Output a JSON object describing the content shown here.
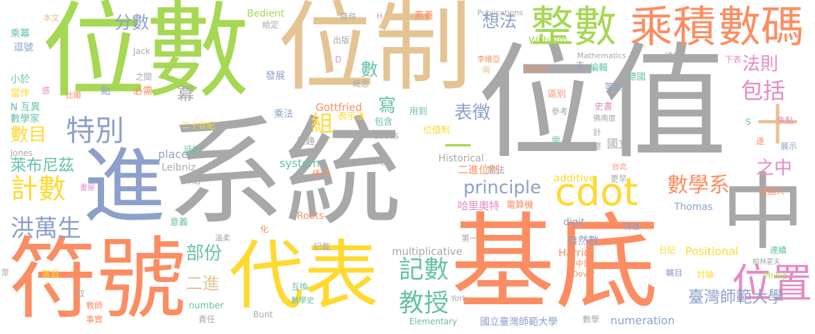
{
  "words": [
    {
      "text": "位值",
      "color": "#A8A8A8"
    },
    {
      "text": "系統",
      "color": "#A8A8A8"
    },
    {
      "text": "位數",
      "color": "#A6D854"
    },
    {
      "text": "位制",
      "color": "#E5C494"
    },
    {
      "text": "基底",
      "color": "#FC8D62"
    },
    {
      "text": "符號",
      "color": "#FC8D62"
    },
    {
      "text": "進",
      "color": "#8DA0CB"
    },
    {
      "text": "代表",
      "color": "#FFD92F"
    },
    {
      "text": "中",
      "color": "#A8A8A8"
    },
    {
      "text": "整數",
      "color": "#A6D854"
    },
    {
      "text": "乘積",
      "color": "#FC8D62"
    },
    {
      "text": "數碼",
      "color": "#FC8D62"
    },
    {
      "text": "十",
      "color": "#E5C494"
    },
    {
      "text": "位置",
      "color": "#E78AC3"
    },
    {
      "text": "cdot",
      "color": "#FFD92F"
    },
    {
      "text": "特別",
      "color": "#8DA0CB"
    },
    {
      "text": "計數",
      "color": "#FFD92F"
    },
    {
      "text": "洪萬生",
      "color": "#8DA0CB"
    },
    {
      "text": "萊布尼茲",
      "color": "#66C2A5"
    },
    {
      "text": "記數",
      "color": "#66C2A5"
    },
    {
      "text": "教授",
      "color": "#66C2A5"
    },
    {
      "text": "數學系",
      "color": "#FC8D62"
    },
    {
      "text": "principle",
      "color": "#8DA0CB"
    },
    {
      "text": "包括",
      "color": "#E78AC3"
    },
    {
      "text": "法則",
      "color": "#E78AC3"
    },
    {
      "text": "之中",
      "color": "#E78AC3"
    },
    {
      "text": "分數",
      "color": "#8DA0CB"
    },
    {
      "text": "表徵",
      "color": "#8DA0CB"
    },
    {
      "text": "數目",
      "color": "#FFD92F"
    },
    {
      "text": "部份",
      "color": "#66C2A5"
    },
    {
      "text": "二進",
      "color": "#E5C494"
    },
    {
      "text": "組",
      "color": "#FFD92F"
    },
    {
      "text": "寫",
      "color": "#66C2A5"
    },
    {
      "text": "數",
      "color": "#66C2A5"
    },
    {
      "text": "冪",
      "color": "#A8A8A8"
    },
    {
      "text": "想法",
      "color": "#8DA0CB"
    },
    {
      "text": "一",
      "color": "#A6D854"
    },
    {
      "text": "臺灣師範大學",
      "color": "#8DA0CB"
    },
    {
      "text": "國立臺灣師範大學",
      "color": "#8DA0CB"
    },
    {
      "text": "numeration",
      "color": "#8DA0CB"
    },
    {
      "text": "Positional",
      "color": "#FFD92F"
    },
    {
      "text": "二進位制",
      "color": "#FC8D62"
    },
    {
      "text": "哈里奧特",
      "color": "#E78AC3"
    },
    {
      "text": "additive",
      "color": "#FFD92F"
    },
    {
      "text": "multiplicative",
      "color": "#A8A8A8"
    },
    {
      "text": "system",
      "color": "#66C2A5"
    },
    {
      "text": "Gottfried",
      "color": "#FC8D62"
    },
    {
      "text": "place",
      "color": "#8DA0CB"
    },
    {
      "text": "自然數",
      "color": "#8DA0CB"
    },
    {
      "text": "Harriot",
      "color": "#FC8D62"
    },
    {
      "text": "Roots",
      "color": "#FC8D62"
    },
    {
      "text": "Historical",
      "color": "#A8A8A8"
    },
    {
      "text": "國立",
      "color": "#A8A8A8"
    },
    {
      "text": "digit",
      "color": "#8DA0CB"
    },
    {
      "text": "Thomas",
      "color": "#8DA0CB"
    },
    {
      "text": "Wilhelm",
      "color": "#A6D854"
    },
    {
      "text": "乘法",
      "color": "#8DA0CB"
    },
    {
      "text": "表示法",
      "color": "#FFD92F"
    },
    {
      "text": "位值制",
      "color": "#FFD92F"
    },
    {
      "text": "包含",
      "color": "#66C2A5"
    },
    {
      "text": "用到",
      "color": "#66C2A5"
    },
    {
      "text": "加法",
      "color": "#A8A8A8"
    },
    {
      "text": "電算機",
      "color": "#FC8D62"
    },
    {
      "text": "Lucas",
      "color": "#A8A8A8"
    },
    {
      "text": "興趣",
      "color": "#A8A8A8"
    },
    {
      "text": "依次",
      "color": "#FC8D62"
    },
    {
      "text": "位",
      "color": "#A8A8A8"
    },
    {
      "text": "出版",
      "color": "#A8A8A8"
    },
    {
      "text": "條件",
      "color": "#A8A8A8"
    },
    {
      "text": "素養",
      "color": "#FC8D62"
    },
    {
      "text": "Bedient",
      "color": "#A6D854"
    },
    {
      "text": "給定",
      "color": "#A8A8A8"
    },
    {
      "text": "Publications",
      "color": "#A8A8A8"
    },
    {
      "text": "H",
      "color": "#E78AC3"
    },
    {
      "text": "D",
      "color": "#E78AC3"
    },
    {
      "text": "本文",
      "color": "#E5C494"
    },
    {
      "text": "乘冪",
      "color": "#66C2A5"
    },
    {
      "text": "逗號",
      "color": "#8DA0CB"
    },
    {
      "text": "Jack",
      "color": "#A8A8A8"
    },
    {
      "text": "小於",
      "color": "#66C2A5"
    },
    {
      "text": "當作",
      "color": "#FFD92F"
    },
    {
      "text": "N 互異",
      "color": "#66C2A5"
    },
    {
      "text": "數學家",
      "color": "#66C2A5"
    },
    {
      "text": "感",
      "color": "#E78AC3"
    },
    {
      "text": "比爾",
      "color": "#FC8D62"
    },
    {
      "text": "點",
      "color": "#8DA0CB"
    },
    {
      "text": "之間",
      "color": "#A8A8A8"
    },
    {
      "text": "必需",
      "color": "#FC8D62"
    },
    {
      "text": "發展",
      "color": "#8DA0CB"
    },
    {
      "text": "概念",
      "color": "#A8A8A8"
    },
    {
      "text": "二十世紀",
      "color": "#FFD92F"
    },
    {
      "text": "延拓",
      "color": "#66C2A5"
    },
    {
      "text": "Leibniz",
      "color": "#A8A8A8"
    },
    {
      "text": "Jones",
      "color": "#A8A8A8"
    },
    {
      "text": "介紹",
      "color": "#A8A8A8"
    },
    {
      "text": "書屋",
      "color": "#E78AC3"
    },
    {
      "text": "意義",
      "color": "#66C2A5"
    },
    {
      "text": "溫柔",
      "color": "#A8A8A8"
    },
    {
      "text": "化",
      "color": "#FC8D62"
    },
    {
      "text": "記載",
      "color": "#A8A8A8"
    },
    {
      "text": "眾",
      "color": "#A8A8A8"
    },
    {
      "text": "書目",
      "color": "#FFD92F"
    },
    {
      "text": "取",
      "color": "#A8A8A8"
    },
    {
      "text": "教師",
      "color": "#FC8D62"
    },
    {
      "text": "事實",
      "color": "#FC8D62"
    },
    {
      "text": "number",
      "color": "#66C2A5"
    },
    {
      "text": "責任",
      "color": "#A8A8A8"
    },
    {
      "text": "Bunt",
      "color": "#A8A8A8"
    },
    {
      "text": "互換",
      "color": "#66C2A5"
    },
    {
      "text": "數學史",
      "color": "#66C2A5"
    },
    {
      "text": "Elementary",
      "color": "#66C2A5"
    },
    {
      "text": "York",
      "color": "#A8A8A8"
    },
    {
      "text": "第一",
      "color": "#A8A8A8"
    },
    {
      "text": "Mathematics",
      "color": "#A8A8A8"
    },
    {
      "text": "總和",
      "color": "#A8A8A8"
    },
    {
      "text": "下表",
      "color": "#E78AC3"
    },
    {
      "text": "李維亞",
      "color": "#FC8D62"
    },
    {
      "text": "兩",
      "color": "#E5C494"
    },
    {
      "text": "base",
      "color": "#FC8D62"
    },
    {
      "text": "末",
      "color": "#8DA0CB"
    },
    {
      "text": "編輯",
      "color": "#66C2A5"
    },
    {
      "text": "德國",
      "color": "#66C2A5"
    },
    {
      "text": "等於",
      "color": "#8DA0CB"
    },
    {
      "text": "區別",
      "color": "#FC8D62"
    },
    {
      "text": "參考",
      "color": "#A8A8A8"
    },
    {
      "text": "史書",
      "color": "#E78AC3"
    },
    {
      "text": "佛南度",
      "color": "#A8A8A8"
    },
    {
      "text": "S",
      "color": "#66C2A5"
    },
    {
      "text": "焦點",
      "color": "#E78AC3"
    },
    {
      "text": "遂",
      "color": "#FC8D62"
    },
    {
      "text": "展示",
      "color": "#8DA0CB"
    },
    {
      "text": "計",
      "color": "#A8A8A8"
    },
    {
      "text": "整",
      "color": "#A8A8A8"
    },
    {
      "text": "需",
      "color": "#66C2A5"
    },
    {
      "text": "台北",
      "color": "#FC8D62"
    },
    {
      "text": "更早",
      "color": "#A8A8A8"
    },
    {
      "text": "英國人",
      "color": "#FC8D62"
    },
    {
      "text": "博雅",
      "color": "#8DA0CB"
    },
    {
      "text": "日記",
      "color": "#FFD92F"
    },
    {
      "text": "連續",
      "color": "#66C2A5"
    },
    {
      "text": "中葉",
      "color": "#FC8D62"
    },
    {
      "text": "柏林霍夫",
      "color": "#A8A8A8"
    },
    {
      "text": "Phillip",
      "color": "#A6D854"
    },
    {
      "text": "瞩目",
      "color": "#8DA0CB"
    },
    {
      "text": "Dover",
      "color": "#FC8D62"
    },
    {
      "text": "討論",
      "color": "#FFD92F"
    },
    {
      "text": "數學",
      "color": "#A8A8A8"
    }
  ]
}
